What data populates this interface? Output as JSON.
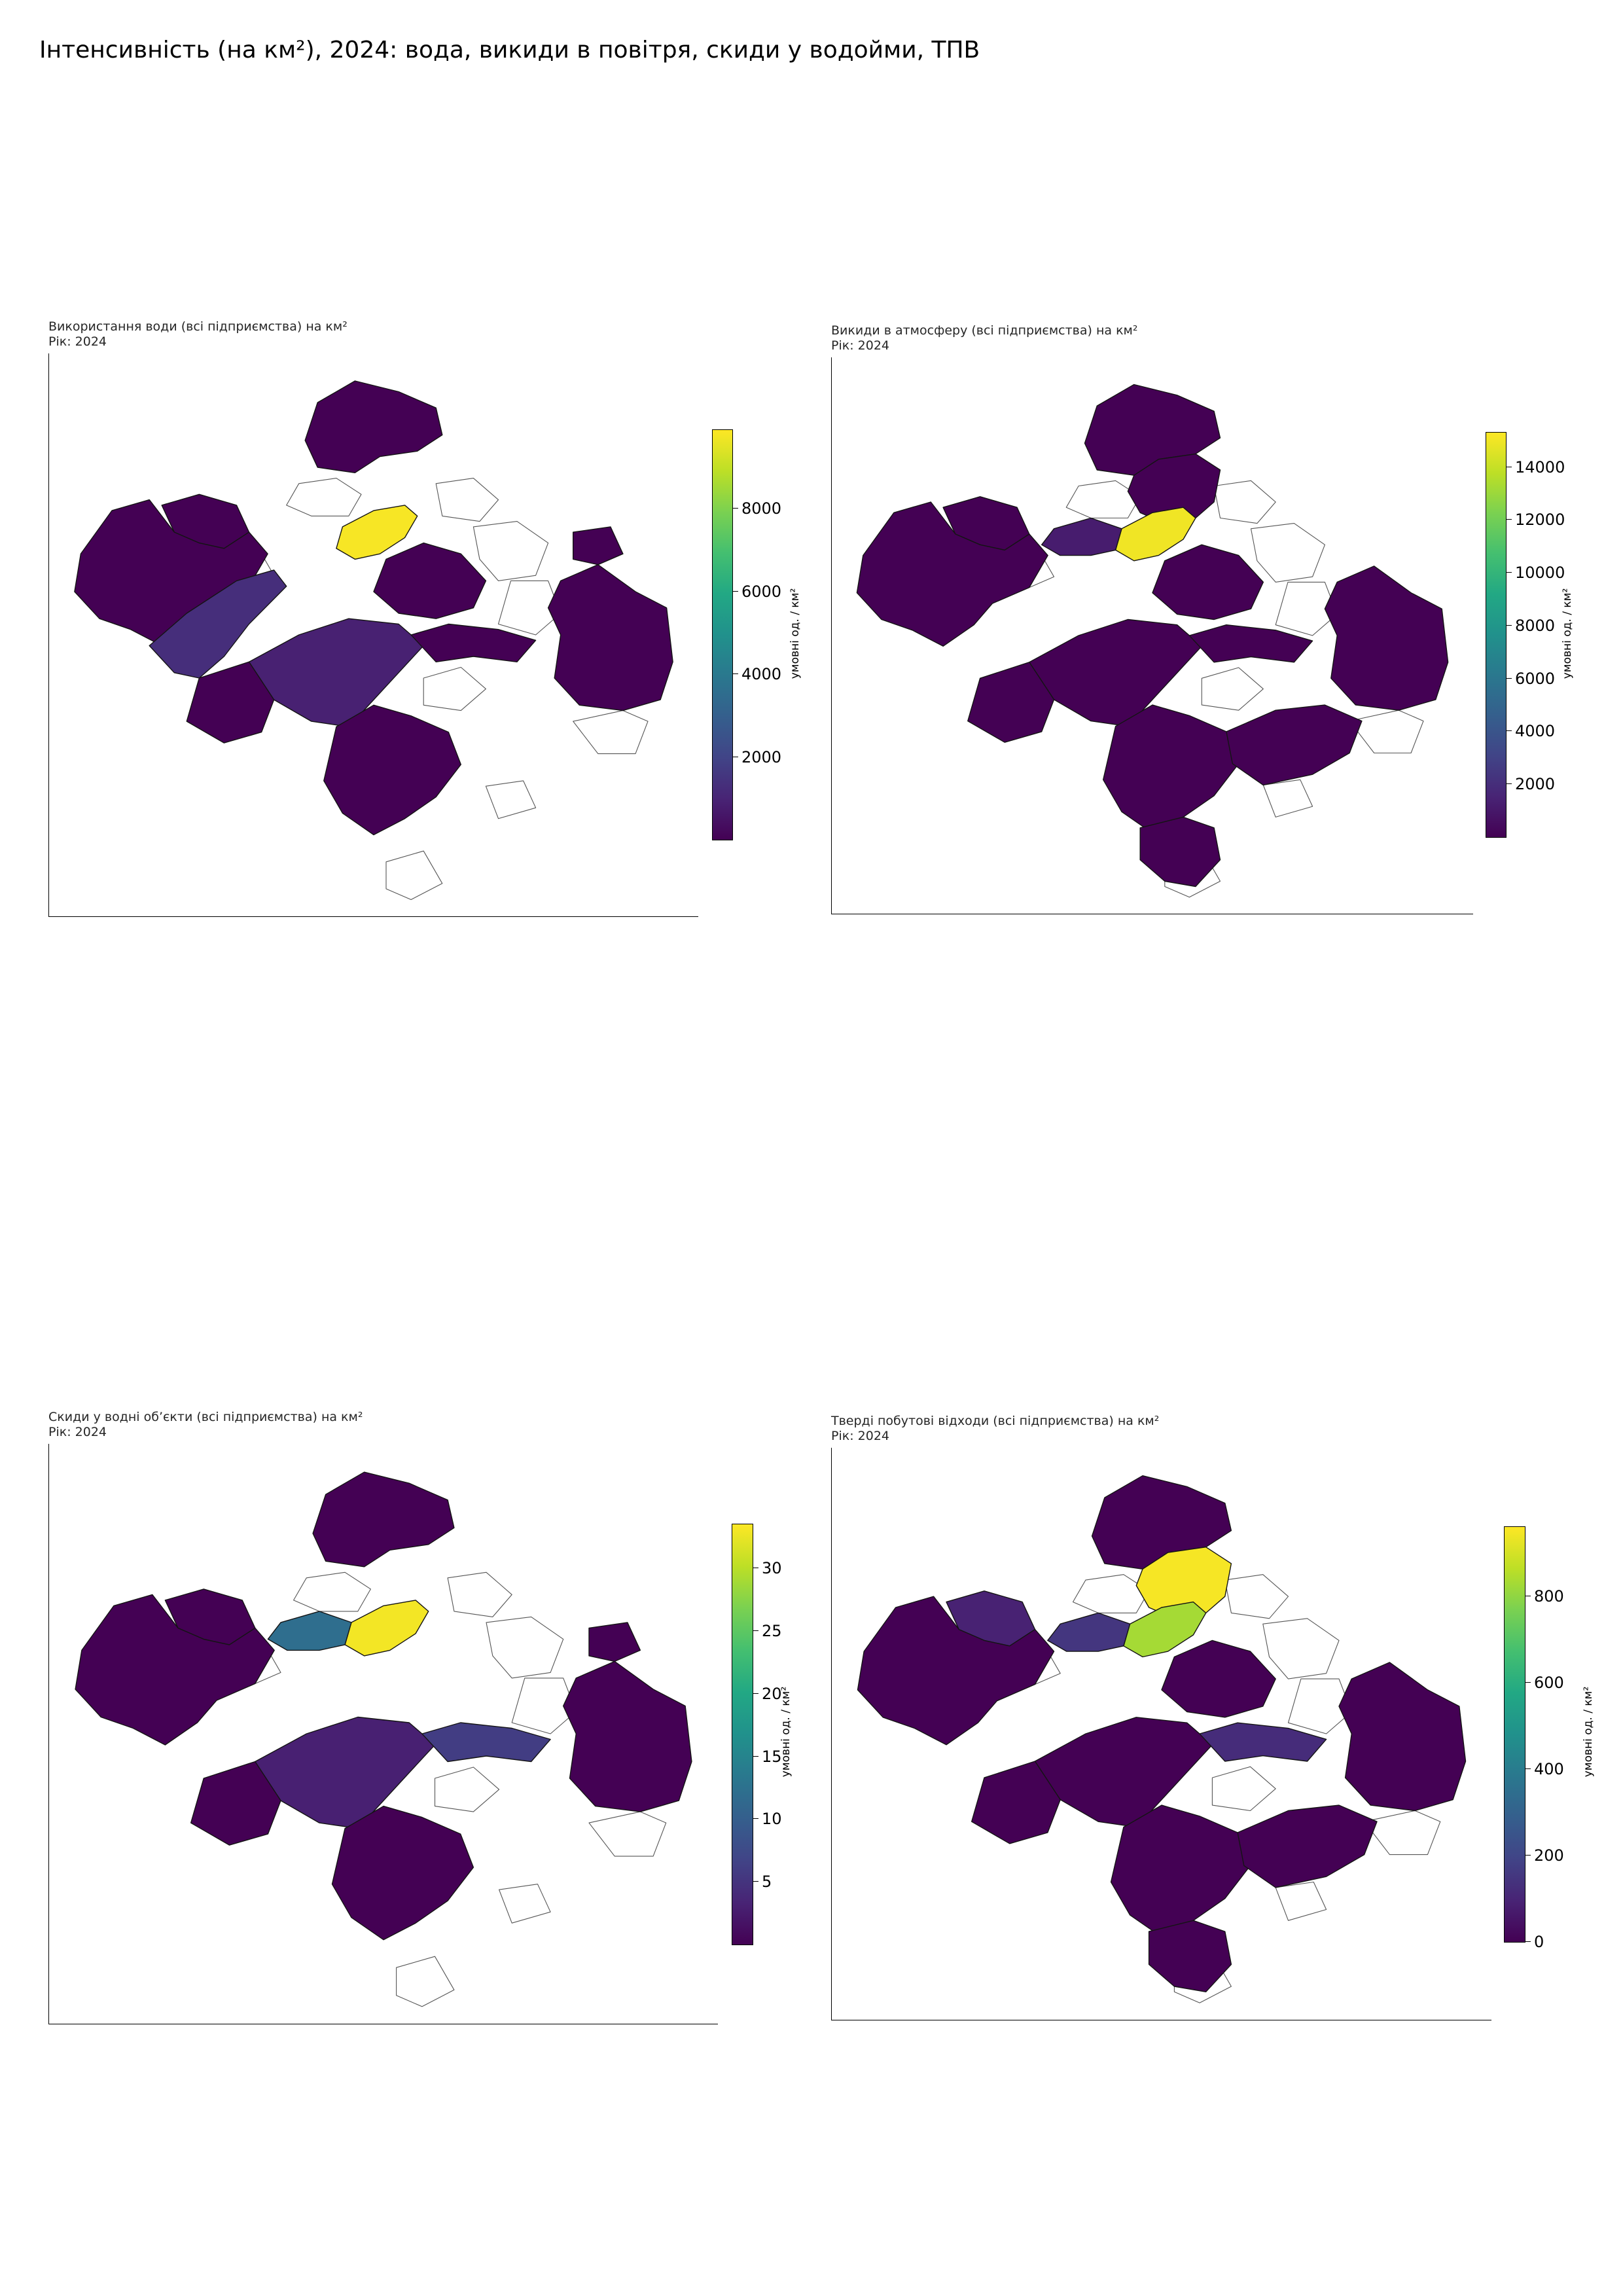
{
  "suptitle": "Інтенсивність (на км²), 2024: вода, викиди в повітря, скиди у водойми, ТПВ",
  "colormap": [
    "#440154",
    "#482475",
    "#414487",
    "#355f8d",
    "#2a788e",
    "#21918c",
    "#22a884",
    "#44bf70",
    "#7ad151",
    "#bddf26",
    "#fde725"
  ],
  "missing_fill": "#ffffff",
  "panels": [
    {
      "id": "water",
      "title": "Використання води (всі підприємства) на км²",
      "subtitle": "Рік: 2024",
      "colorbar": {
        "label": "умовні од. / км²",
        "min": 0,
        "max": 9900,
        "ticks": [
          2000,
          4000,
          6000,
          8000
        ]
      },
      "highlights": [
        {
          "region": "center-north",
          "value": 9800
        },
        {
          "region": "west-strip",
          "value": 1300
        },
        {
          "region": "central-south",
          "value": 900
        }
      ]
    },
    {
      "id": "air",
      "title": "Викиди в атмосферу (всі підприємства) на км²",
      "subtitle": "Рік: 2024",
      "colorbar": {
        "label": "умовні од. / км²",
        "min": 0,
        "max": 15300,
        "ticks": [
          2000,
          4000,
          6000,
          8000,
          10000,
          12000,
          14000
        ]
      },
      "highlights": [
        {
          "region": "center-north",
          "value": 15000
        },
        {
          "region": "north-west-center",
          "value": 1200
        }
      ]
    },
    {
      "id": "discharge",
      "title": "Скиди у водні об’єкти (всі підприємства) на км²",
      "subtitle": "Рік: 2024",
      "colorbar": {
        "label": "умовні од. / км²",
        "min": 0,
        "max": 33.5,
        "ticks": [
          5,
          10,
          15,
          20,
          25,
          30
        ]
      },
      "highlights": [
        {
          "region": "center-north",
          "value": 33
        },
        {
          "region": "north-west-center",
          "value": 12
        },
        {
          "region": "center-east-strip",
          "value": 6
        },
        {
          "region": "central-south",
          "value": 3
        }
      ]
    },
    {
      "id": "msw",
      "title": "Тверді побутові відходи (всі підприємства) на км²",
      "subtitle": "Рік: 2024",
      "colorbar": {
        "label": "умовні од. / км²",
        "min": 0,
        "max": 960,
        "ticks": [
          0,
          200,
          400,
          600,
          800
        ]
      },
      "highlights": [
        {
          "region": "north-center-upper",
          "value": 950
        },
        {
          "region": "center-north",
          "value": 830
        },
        {
          "region": "north-west-center",
          "value": 150
        },
        {
          "region": "west-upper",
          "value": 90
        },
        {
          "region": "center-east-strip",
          "value": 120
        }
      ]
    }
  ]
}
